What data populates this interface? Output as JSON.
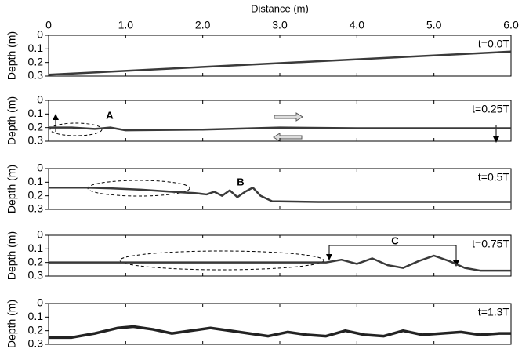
{
  "chart_data": [
    {
      "type": "line",
      "title": "t=0.0T",
      "xlabel": "Distance (m)",
      "ylabel": "Depth (m)",
      "xlim": [
        0,
        6
      ],
      "ylim": [
        0,
        0.3
      ],
      "y_inverted": true,
      "xticks": [
        0,
        {
          "value": 1,
          "label": "1.0"
        },
        {
          "value": 2,
          "label": "2.0"
        },
        {
          "value": 3,
          "label": "3.0"
        },
        {
          "value": 4,
          "label": "4.0"
        },
        {
          "value": 5,
          "label": "5.0"
        },
        {
          "value": 6,
          "label": "6.0"
        }
      ],
      "yticks": [
        0,
        0.1,
        0.2,
        0.3
      ],
      "color": "#3a3a3a",
      "x": [
        0,
        6
      ],
      "values": [
        0.29,
        0.12
      ],
      "annotations": []
    },
    {
      "type": "line",
      "title": "t=0.25T",
      "ylabel": "Depth (m)",
      "xlim": [
        0,
        6
      ],
      "ylim": [
        0,
        0.3
      ],
      "y_inverted": true,
      "yticks": [
        0,
        0.1,
        0.2,
        0.3
      ],
      "color": "#3a3a3a",
      "x": [
        0,
        0.3,
        0.6,
        0.8,
        1.0,
        2.0,
        3.0,
        4.0,
        5.0,
        6.0
      ],
      "values": [
        0.2,
        0.2,
        0.21,
        0.2,
        0.22,
        0.215,
        0.2,
        0.205,
        0.205,
        0.205
      ],
      "annotations": [
        "A"
      ]
    },
    {
      "type": "line",
      "title": "t=0.5T",
      "ylabel": "Depth (m)",
      "xlim": [
        0,
        6
      ],
      "ylim": [
        0,
        0.3
      ],
      "y_inverted": true,
      "yticks": [
        0,
        0.1,
        0.2,
        0.3
      ],
      "color": "#3a3a3a",
      "x": [
        0,
        0.5,
        0.8,
        1.2,
        1.6,
        1.9,
        2.05,
        2.15,
        2.25,
        2.35,
        2.45,
        2.55,
        2.65,
        2.75,
        2.9,
        3.5,
        6.0
      ],
      "values": [
        0.14,
        0.14,
        0.145,
        0.155,
        0.17,
        0.18,
        0.19,
        0.17,
        0.2,
        0.16,
        0.21,
        0.17,
        0.14,
        0.2,
        0.24,
        0.245,
        0.245
      ],
      "annotations": [
        "B"
      ]
    },
    {
      "type": "line",
      "title": "t=0.75T",
      "ylabel": "Depth (m)",
      "xlim": [
        0,
        6
      ],
      "ylim": [
        0,
        0.3
      ],
      "y_inverted": true,
      "yticks": [
        0,
        0.1,
        0.2,
        0.3
      ],
      "color": "#3a3a3a",
      "x": [
        0,
        1,
        2,
        3,
        3.6,
        3.8,
        4.0,
        4.2,
        4.4,
        4.6,
        4.8,
        5.0,
        5.2,
        5.4,
        5.6,
        6.0
      ],
      "values": [
        0.2,
        0.2,
        0.2,
        0.2,
        0.2,
        0.18,
        0.21,
        0.17,
        0.22,
        0.24,
        0.19,
        0.15,
        0.19,
        0.24,
        0.26,
        0.26
      ],
      "annotations": [
        "C"
      ]
    },
    {
      "type": "line",
      "title": "t=1.3T",
      "ylabel": "Depth (m)",
      "xlim": [
        0,
        6
      ],
      "ylim": [
        0,
        0.3
      ],
      "y_inverted": true,
      "yticks": [
        0,
        0.1,
        0.2,
        0.3
      ],
      "color": "#222222",
      "x": [
        0,
        0.3,
        0.6,
        0.9,
        1.1,
        1.35,
        1.6,
        1.85,
        2.1,
        2.35,
        2.6,
        2.85,
        3.1,
        3.35,
        3.6,
        3.85,
        4.1,
        4.35,
        4.6,
        4.85,
        5.1,
        5.35,
        5.6,
        5.85,
        6.0
      ],
      "values": [
        0.25,
        0.25,
        0.22,
        0.18,
        0.17,
        0.19,
        0.22,
        0.2,
        0.18,
        0.2,
        0.22,
        0.24,
        0.21,
        0.23,
        0.24,
        0.2,
        0.23,
        0.24,
        0.2,
        0.23,
        0.22,
        0.21,
        0.23,
        0.22,
        0.22
      ],
      "annotations": []
    }
  ]
}
